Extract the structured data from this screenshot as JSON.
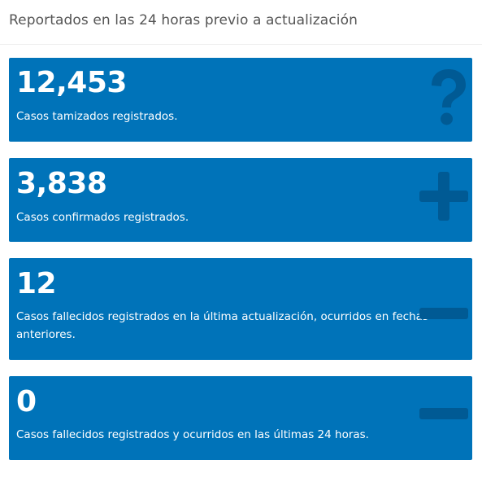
{
  "header": {
    "title": "Reportados en las 24 horas previo a actualización"
  },
  "colors": {
    "card_background": "#0073b9",
    "icon_shade": "#005a94"
  },
  "cards": [
    {
      "value": "12,453",
      "description": "Casos tamizados registrados.",
      "icon": "question-icon"
    },
    {
      "value": "3,838",
      "description": "Casos confirmados registrados.",
      "icon": "plus-icon"
    },
    {
      "value": "12",
      "description": "Casos fallecidos registrados en la última actualización, ocurridos en fechas anteriores.",
      "icon": "minus-icon"
    },
    {
      "value": "0",
      "description": "Casos fallecidos registrados y ocurridos en las últimas 24 horas.",
      "icon": "minus-icon"
    }
  ]
}
